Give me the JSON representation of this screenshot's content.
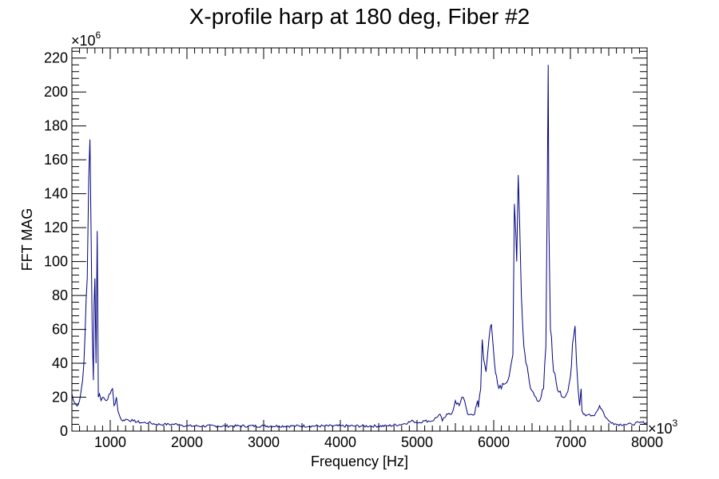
{
  "chart_data": {
    "type": "line",
    "title": "X-profile harp at 180 deg, Fiber #2",
    "xlabel": "Frequency [Hz]",
    "ylabel": "FFT MAG",
    "x_multiplier_label": "×10",
    "x_multiplier_exp": "3",
    "y_multiplier_label": "×10",
    "y_multiplier_exp": "6",
    "xlim": [
      500,
      8000
    ],
    "ylim": [
      0,
      226
    ],
    "x_ticks": [
      1000,
      2000,
      3000,
      4000,
      5000,
      6000,
      7000,
      8000
    ],
    "y_ticks": [
      0,
      20,
      40,
      60,
      80,
      100,
      120,
      140,
      160,
      180,
      200,
      220
    ],
    "grid": false,
    "line_color": "#000080",
    "series": [
      {
        "x": [
          500,
          520,
          560,
          600,
          640,
          670,
          700,
          720,
          735,
          750,
          765,
          780,
          790,
          800,
          815,
          830,
          845,
          860,
          880,
          900,
          950,
          1000,
          1030,
          1050,
          1080,
          1100,
          1130,
          1160,
          1200,
          1300,
          1400,
          1500,
          1600,
          1700,
          1800,
          1900,
          2000,
          2200,
          2400,
          2600,
          2800,
          3000,
          3200,
          3400,
          3600,
          3800,
          4000,
          4200,
          4400,
          4600,
          4800,
          4950,
          5000,
          5100,
          5200,
          5300,
          5330,
          5360,
          5400,
          5450,
          5500,
          5550,
          5600,
          5620,
          5640,
          5660,
          5700,
          5750,
          5790,
          5800,
          5830,
          5850,
          5870,
          5880,
          5900,
          5920,
          5940,
          5970,
          5990,
          6010,
          6050,
          6100,
          6150,
          6200,
          6250,
          6270,
          6290,
          6300,
          6320,
          6340,
          6360,
          6380,
          6420,
          6480,
          6550,
          6600,
          6650,
          6680,
          6700,
          6710,
          6720,
          6740,
          6780,
          6850,
          6900,
          6950,
          7000,
          7040,
          7060,
          7080,
          7100,
          7120,
          7140,
          7150,
          7170,
          7200,
          7250,
          7300,
          7350,
          7380,
          7420,
          7460,
          7500,
          7550,
          7600,
          7700,
          7800,
          7900,
          8000
        ],
        "values": [
          22,
          18,
          15,
          18,
          30,
          55,
          90,
          150,
          172,
          118,
          60,
          30,
          75,
          90,
          40,
          118,
          20,
          22,
          18,
          20,
          18,
          22,
          25,
          15,
          20,
          12,
          8,
          6,
          7,
          6,
          5,
          5,
          4,
          4,
          4,
          4,
          3,
          3,
          3,
          3,
          3,
          3,
          3,
          3,
          3,
          3,
          3,
          3,
          3,
          3,
          4,
          6,
          5,
          6,
          6,
          10,
          6,
          8,
          10,
          10,
          18,
          15,
          20,
          18,
          14,
          10,
          10,
          10,
          18,
          14,
          25,
          54,
          42,
          40,
          35,
          45,
          55,
          63,
          52,
          40,
          28,
          25,
          28,
          32,
          45,
          134,
          115,
          100,
          151,
          120,
          80,
          60,
          40,
          25,
          20,
          18,
          25,
          50,
          150,
          216,
          120,
          60,
          35,
          23,
          20,
          22,
          32,
          55,
          62,
          40,
          25,
          15,
          25,
          12,
          10,
          9,
          10,
          9,
          12,
          15,
          12,
          8,
          6,
          5,
          4,
          4,
          4,
          5,
          5
        ]
      }
    ]
  }
}
